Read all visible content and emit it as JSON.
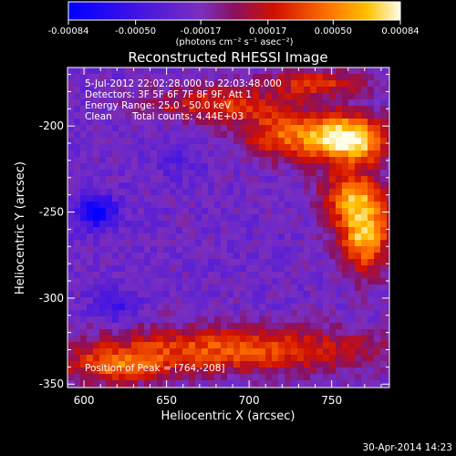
{
  "chart_data": {
    "type": "heatmap",
    "title": "Reconstructed RHESSI Image",
    "xlabel": "Heliocentric X (arcsec)",
    "ylabel": "Heliocentric Y (arcsec)",
    "xlim": [
      590,
      785
    ],
    "ylim": [
      -352,
      -166
    ],
    "x_ticks": [
      600,
      650,
      700,
      750
    ],
    "y_ticks": [
      -200,
      -250,
      -300,
      -350
    ],
    "x_tick_labels": [
      "600",
      "650",
      "700",
      "750"
    ],
    "y_tick_labels": [
      "-200",
      "-250",
      "-300",
      "-350"
    ],
    "colorbar": {
      "min": -0.00084,
      "max": 0.00084,
      "tick_values": [
        -0.00084,
        -0.0005,
        -0.00017,
        0.00017,
        0.0005,
        0.00084
      ],
      "tick_labels": [
        "-0.00084",
        "-0.00050",
        "-0.00017",
        "0.00017",
        "0.00050",
        "0.00084"
      ],
      "unit_label": "(photons cm⁻² s⁻¹ asec⁻²)",
      "colors": [
        "#0000ff",
        "#5a1fd0",
        "#7a30b0",
        "#b01010",
        "#ff4000",
        "#ffb000",
        "#ffffe0"
      ]
    },
    "annotations": {
      "time_range": "5-Jul-2012 22:02:28.000 to 22:03:48.000",
      "detectors": "Detectors: 3F 5F 6F 7F 8F 9F, Att 1",
      "energy_range": "Energy Range: 25.0 - 50.0 keV",
      "method": "Clean",
      "total_counts": "Total counts: 4.44E+03",
      "peak": "Position of Peak = [764,-208]"
    },
    "peak_position": [
      764,
      -208
    ]
  },
  "footer": {
    "timestamp": "30-Apr-2014 14:23"
  }
}
